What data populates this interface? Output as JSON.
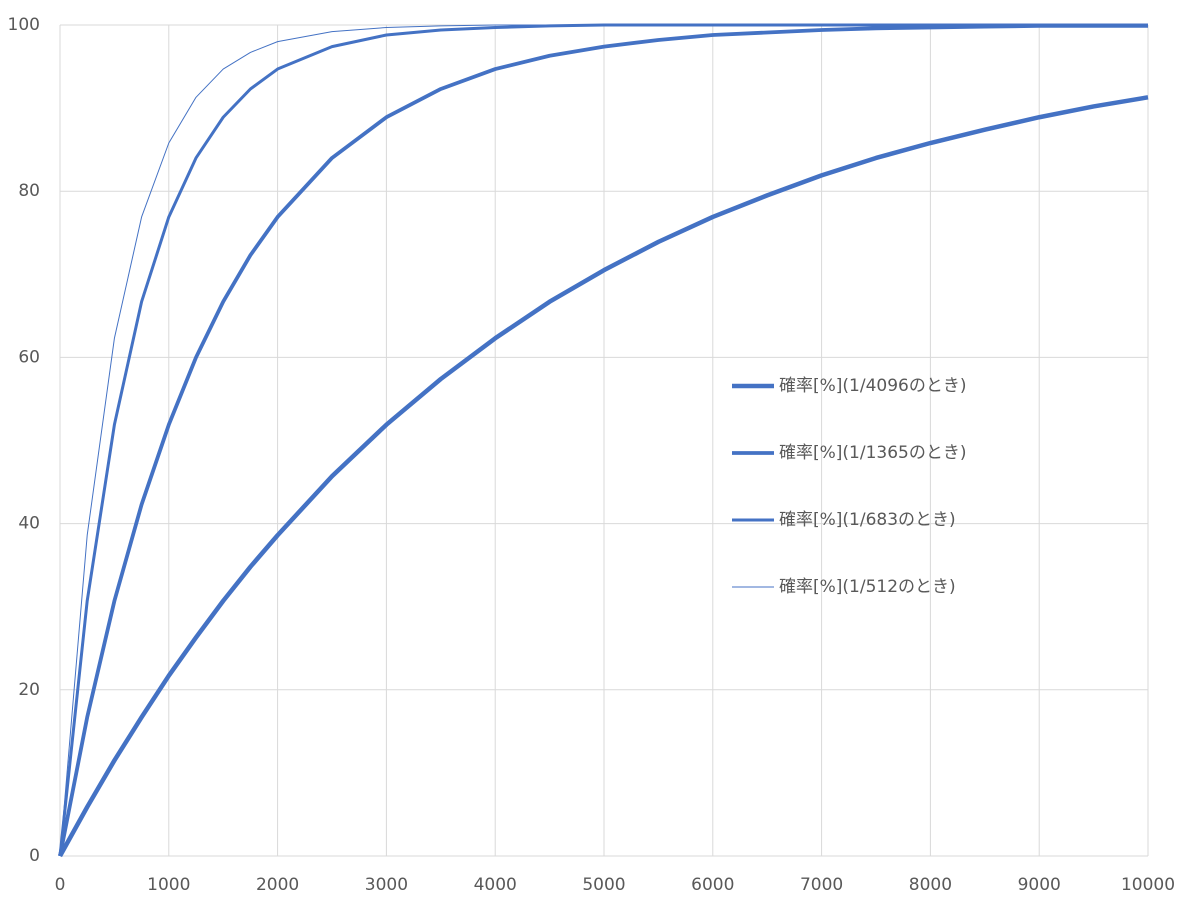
{
  "chart_data": {
    "type": "line",
    "x": [
      0,
      250,
      500,
      750,
      1000,
      1250,
      1500,
      1750,
      2000,
      2500,
      3000,
      3500,
      4000,
      4500,
      5000,
      5500,
      6000,
      6500,
      7000,
      7500,
      8000,
      8500,
      9000,
      9500,
      10000
    ],
    "series": [
      {
        "name": "確率[%](1/4096のとき)",
        "color": "#4472c4",
        "width": 4.5,
        "values": [
          0,
          5.9,
          11.5,
          16.7,
          21.7,
          26.3,
          30.7,
          34.8,
          38.6,
          45.7,
          51.9,
          57.4,
          62.3,
          66.7,
          70.5,
          73.9,
          76.9,
          79.5,
          81.9,
          84.0,
          85.8,
          87.4,
          88.9,
          90.2,
          91.3
        ]
      },
      {
        "name": "確率[%](1/1365のとき)",
        "color": "#4472c4",
        "width": 3.8,
        "values": [
          0,
          16.7,
          30.7,
          42.3,
          51.9,
          60.0,
          66.7,
          72.3,
          76.9,
          84.0,
          88.9,
          92.3,
          94.7,
          96.3,
          97.4,
          98.2,
          98.8,
          99.1,
          99.4,
          99.6,
          99.7,
          99.8,
          99.9,
          99.9,
          99.9
        ]
      },
      {
        "name": "確率[%](1/683のとき)",
        "color": "#4472c4",
        "width": 3,
        "values": [
          0,
          30.7,
          51.9,
          66.7,
          76.9,
          84.0,
          88.9,
          92.3,
          94.7,
          97.4,
          98.8,
          99.4,
          99.7,
          99.9,
          100,
          100,
          100,
          100,
          100,
          100,
          100,
          100,
          100,
          100,
          100
        ]
      },
      {
        "name": "確率[%](1/512のとき)",
        "color": "#4472c4",
        "width": 1,
        "values": [
          0,
          38.6,
          62.3,
          76.9,
          85.8,
          91.3,
          94.7,
          96.7,
          98.0,
          99.2,
          99.7,
          99.9,
          100,
          100,
          100,
          100,
          100,
          100,
          100,
          100,
          100,
          100,
          100,
          100,
          100
        ]
      }
    ],
    "xlim": [
      0,
      10000
    ],
    "xticks": [
      0,
      1000,
      2000,
      3000,
      4000,
      5000,
      6000,
      7000,
      8000,
      9000,
      10000
    ],
    "ylim": [
      0,
      100
    ],
    "yticks": [
      0,
      20,
      40,
      60,
      80,
      100
    ],
    "grid": true,
    "legend": "right"
  }
}
